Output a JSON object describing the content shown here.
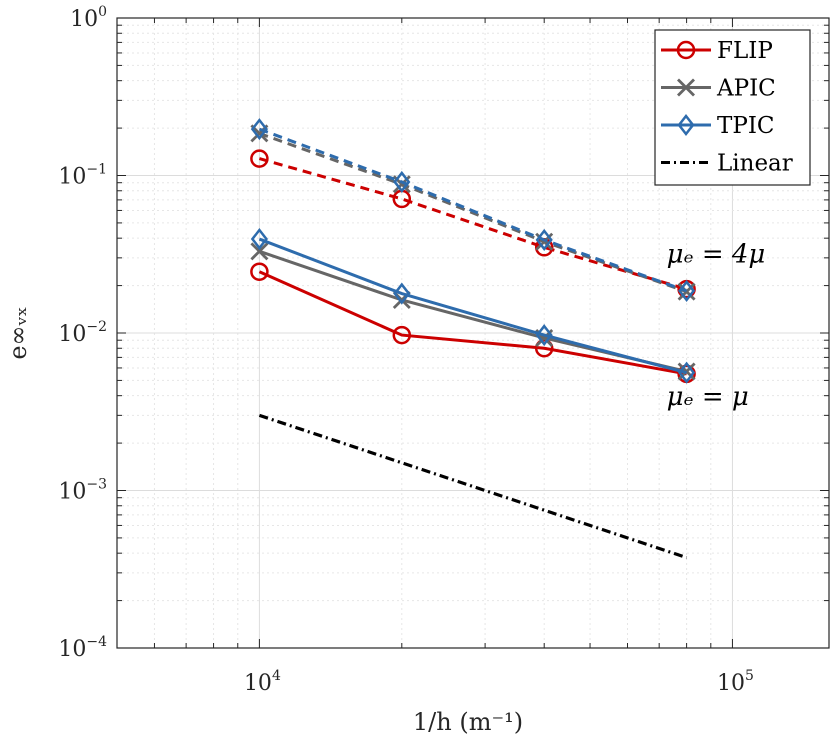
{
  "chart_data": {
    "type": "line",
    "xlabel": "1/h (m⁻¹)",
    "ylabel": "e∞ᵥₓ",
    "x_scale": "log",
    "y_scale": "log",
    "xlim": [
      5000,
      160000
    ],
    "ylim": [
      0.0001,
      1
    ],
    "grid": true,
    "legend_position": "top-right",
    "x_ticks": [
      {
        "value": 10000,
        "base": "10",
        "exp": "4"
      },
      {
        "value": 100000,
        "base": "10",
        "exp": "5"
      }
    ],
    "y_ticks": [
      {
        "value": 1,
        "base": "10",
        "exp": "0"
      },
      {
        "value": 0.1,
        "base": "10",
        "exp": "−1"
      },
      {
        "value": 0.01,
        "base": "10",
        "exp": "−2"
      },
      {
        "value": 0.001,
        "base": "10",
        "exp": "−3"
      },
      {
        "value": 0.0001,
        "base": "10",
        "exp": "−4"
      }
    ],
    "x": [
      10000,
      20000,
      40000,
      80000
    ],
    "series": [
      {
        "name": "FLIP",
        "group": "μ_e = 4μ",
        "color": "#cc0000",
        "marker": "circle",
        "dash": "dashed",
        "values": [
          0.128,
          0.071,
          0.035,
          0.019
        ]
      },
      {
        "name": "APIC",
        "group": "μ_e = 4μ",
        "color": "#666666",
        "marker": "x",
        "dash": "dashed",
        "values": [
          0.185,
          0.088,
          0.038,
          0.0183
        ]
      },
      {
        "name": "TPIC",
        "group": "μ_e = 4μ",
        "color": "#2e6cad",
        "marker": "diamond",
        "dash": "dashed",
        "values": [
          0.197,
          0.091,
          0.039,
          0.0185
        ]
      },
      {
        "name": "FLIP",
        "group": "μ_e = μ",
        "color": "#cc0000",
        "marker": "circle",
        "dash": "solid",
        "values": [
          0.0245,
          0.0097,
          0.008,
          0.0055
        ]
      },
      {
        "name": "APIC",
        "group": "μ_e = μ",
        "color": "#666666",
        "marker": "x",
        "dash": "solid",
        "values": [
          0.033,
          0.0162,
          0.0093,
          0.0057
        ]
      },
      {
        "name": "TPIC",
        "group": "μ_e = μ",
        "color": "#2e6cad",
        "marker": "diamond",
        "dash": "solid",
        "values": [
          0.0395,
          0.0178,
          0.0097,
          0.0056
        ]
      },
      {
        "name": "Linear",
        "color": "#000000",
        "marker": "none",
        "dash": "dashdot",
        "x": [
          10000,
          80000
        ],
        "values": [
          0.003,
          0.000375
        ]
      }
    ],
    "legend": [
      {
        "label": "FLIP",
        "color": "#cc0000",
        "marker": "circle"
      },
      {
        "label": "APIC",
        "color": "#666666",
        "marker": "x"
      },
      {
        "label": "TPIC",
        "color": "#2e6cad",
        "marker": "diamond"
      },
      {
        "label": "Linear",
        "color": "#000000",
        "marker": "none",
        "dash": "dashdot"
      }
    ],
    "annotations": [
      {
        "text": "μₑ = 4μ",
        "x": 80000,
        "y": 0.028
      },
      {
        "text": "μₑ = μ",
        "x": 80000,
        "y": 0.0035
      }
    ]
  }
}
